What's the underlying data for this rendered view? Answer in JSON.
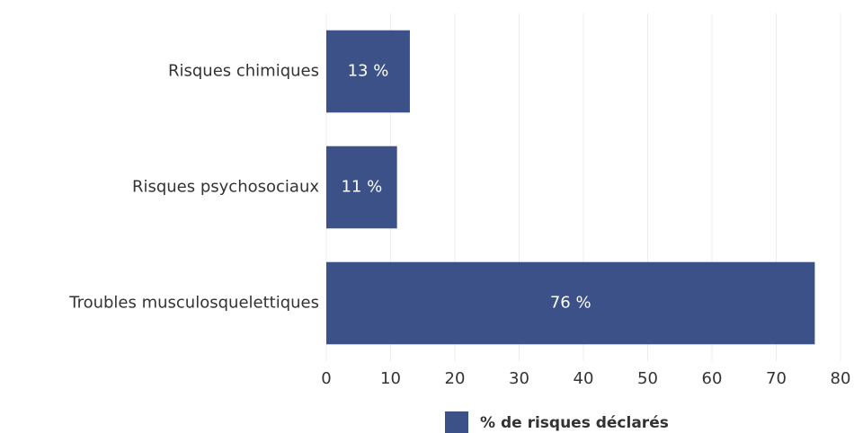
{
  "chart_data": {
    "type": "hbar",
    "categories": [
      "Risques chimiques",
      "Risques psychosociaux",
      "Troubles musculosquelettiques"
    ],
    "series": [
      {
        "name": "% de risques déclarés",
        "color": "#3d5189",
        "values": [
          13,
          11,
          76
        ],
        "value_labels": [
          "13 %",
          "11 %",
          "76 %"
        ]
      }
    ],
    "xlim": [
      0,
      80
    ],
    "xticks": [
      0,
      10,
      20,
      30,
      40,
      50,
      60,
      70,
      80
    ],
    "grid": true,
    "legend": "bottom"
  }
}
